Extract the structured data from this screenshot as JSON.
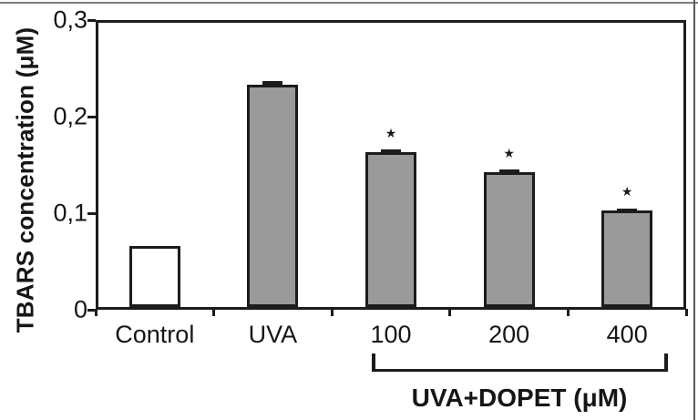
{
  "figure": {
    "kind": "scientific bar chart",
    "background_color": "#ffffff",
    "frame_color": "#1c1c1c"
  },
  "chart_data": {
    "type": "bar",
    "title": "",
    "xlabel": "",
    "ylabel": "TBARS concentration (μM)",
    "ylim": [
      0,
      0.3
    ],
    "grid": false,
    "legend": false,
    "yticks": [
      {
        "label": "0",
        "value": 0
      },
      {
        "label": "0,1",
        "value": 0.1
      },
      {
        "label": "0,2",
        "value": 0.2
      },
      {
        "label": "0,3",
        "value": 0.3
      }
    ],
    "categories": [
      "Control",
      "UVA",
      "100",
      "200",
      "400"
    ],
    "values": [
      0.063,
      0.23,
      0.16,
      0.14,
      0.1
    ],
    "errors": [
      0,
      0.005,
      0.004,
      0.003,
      0.003
    ],
    "significant": [
      false,
      false,
      true,
      true,
      true
    ],
    "significance_marker": "★",
    "bar_fills": [
      "#ffffff",
      "#9a9a9a",
      "#9a9a9a",
      "#9a9a9a",
      "#9a9a9a"
    ],
    "bar_stroke": "#1c1c1c",
    "group_bracket": {
      "label": "UVA+DOPET (μM)",
      "members": [
        "100",
        "200",
        "400"
      ]
    }
  }
}
